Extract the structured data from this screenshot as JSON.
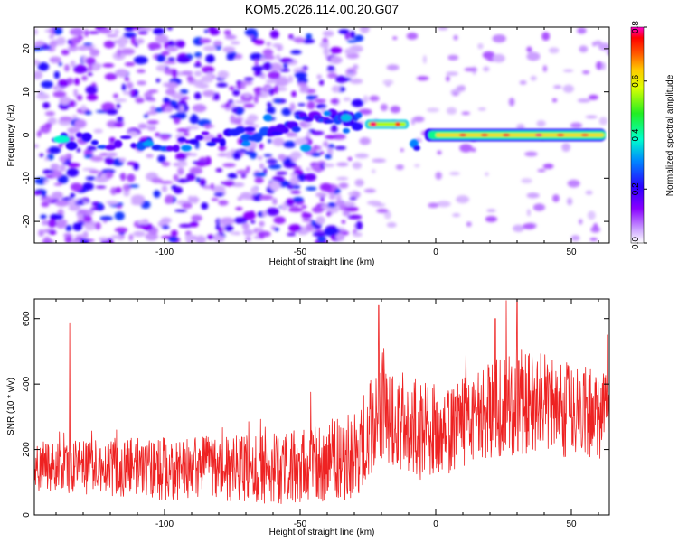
{
  "title": "KOM5.2026.114.00.20.G07",
  "chart_data": [
    {
      "type": "heatmap",
      "xlabel": "Height of straight line (km)",
      "ylabel": "Frequency (Hz)",
      "xlim": [
        -148,
        64
      ],
      "ylim": [
        -25,
        25
      ],
      "xticks": [
        -100,
        -50,
        0,
        50
      ],
      "yticks": [
        -20,
        -10,
        0,
        10,
        20
      ],
      "colorbar": {
        "label": "Normalized spectral amplitude",
        "range": [
          0,
          0.8
        ],
        "ticks": [
          0.0,
          0.2,
          0.4,
          0.6,
          0.8
        ],
        "tick_labels": [
          "0.0",
          "0.2",
          "0.4",
          "0.6",
          "0.8"
        ]
      },
      "features": [
        {
          "description": "scattered noise blobs",
          "x_range": [
            -148,
            -28
          ],
          "amplitude": 0.15
        },
        {
          "description": "broken rising line",
          "x": [
            -140,
            -100,
            -70,
            -50,
            -35,
            -28
          ],
          "freq": [
            -1,
            -2,
            0,
            3,
            4,
            3
          ],
          "amplitude": 0.2
        },
        {
          "description": "step segment",
          "x": [
            -26,
            -10
          ],
          "freq": 2.5,
          "amplitude": 0.65
        },
        {
          "description": "steady line",
          "x": [
            0,
            62
          ],
          "freq": 0,
          "amplitude": 0.75
        }
      ]
    },
    {
      "type": "line",
      "xlabel": "Height of straight line (km)",
      "ylabel": "SNR (10 * v/v)",
      "xlim": [
        -148,
        64
      ],
      "ylim": [
        0,
        660
      ],
      "xticks": [
        -100,
        -50,
        0,
        50
      ],
      "yticks": [
        0,
        200,
        400,
        600
      ],
      "color": "#ee2222",
      "envelope": [
        {
          "x": -148,
          "mean": 140,
          "spread": 60
        },
        {
          "x": -134,
          "mean": 150,
          "spread": 70
        },
        {
          "x": -100,
          "mean": 140,
          "spread": 80
        },
        {
          "x": -60,
          "mean": 140,
          "spread": 90
        },
        {
          "x": -30,
          "mean": 180,
          "spread": 110
        },
        {
          "x": -20,
          "mean": 320,
          "spread": 130
        },
        {
          "x": -5,
          "mean": 250,
          "spread": 130
        },
        {
          "x": 5,
          "mean": 260,
          "spread": 110
        },
        {
          "x": 20,
          "mean": 320,
          "spread": 120
        },
        {
          "x": 30,
          "mean": 350,
          "spread": 140
        },
        {
          "x": 64,
          "mean": 300,
          "spread": 110
        }
      ],
      "peaks": [
        {
          "x": -135,
          "y": 585
        },
        {
          "x": -21,
          "y": 640
        },
        {
          "x": 22,
          "y": 600
        },
        {
          "x": 26,
          "y": 655
        },
        {
          "x": 30,
          "y": 660
        }
      ]
    }
  ]
}
